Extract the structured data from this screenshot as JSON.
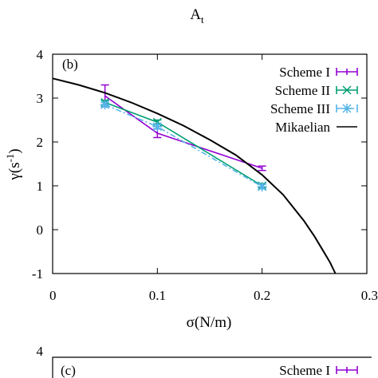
{
  "header": {
    "top_text": "A",
    "top_text_sub": "t"
  },
  "chart_data": [
    {
      "type": "line",
      "panel_label": "(b)",
      "xlabel": "σ(N/m)",
      "ylabel_main": "γ(s",
      "ylabel_sup": "-1",
      "ylabel_close": ")",
      "xlim": [
        0,
        0.3
      ],
      "ylim": [
        -1,
        4
      ],
      "x_ticks": [
        0,
        0.1,
        0.2,
        0.3
      ],
      "x_tick_labels": [
        "0",
        "0.1",
        "0.2",
        "0.3"
      ],
      "y_ticks": [
        -1,
        0,
        1,
        2,
        3,
        4
      ],
      "y_tick_labels": [
        "-1",
        "0",
        "1",
        "2",
        "3",
        "4"
      ],
      "grid": false,
      "legend_position": "top-right",
      "series": [
        {
          "name": "Scheme I",
          "color": "#9400d3",
          "style": "solid-errorbar",
          "x": [
            0.05,
            0.1,
            0.2
          ],
          "y": [
            3.05,
            2.2,
            1.4
          ],
          "err": [
            0.25,
            0.1,
            0.05
          ]
        },
        {
          "name": "Scheme II",
          "color": "#009e73",
          "style": "solid-x-marker",
          "x": [
            0.05,
            0.1,
            0.2
          ],
          "y": [
            2.9,
            2.45,
            1.0
          ],
          "err": [
            0.05,
            0.05,
            0.05
          ]
        },
        {
          "name": "Scheme III",
          "color": "#56b4e9",
          "style": "dashdot-star-marker",
          "x": [
            0.05,
            0.1,
            0.2
          ],
          "y": [
            2.85,
            2.35,
            0.98
          ],
          "err": [
            0.05,
            0.05,
            0.05
          ]
        },
        {
          "name": "Mikaelian",
          "color": "#000000",
          "style": "curve",
          "x": [
            0,
            0.025,
            0.05,
            0.075,
            0.1,
            0.125,
            0.15,
            0.175,
            0.2,
            0.22,
            0.24,
            0.25,
            0.26,
            0.265,
            0.27
          ],
          "y": [
            3.45,
            3.3,
            3.12,
            2.9,
            2.65,
            2.37,
            2.05,
            1.7,
            1.25,
            0.8,
            0.2,
            -0.15,
            -0.55,
            -0.75,
            -1.0
          ]
        }
      ]
    },
    {
      "type": "line",
      "panel_label": "(c)",
      "y_tick_labels": [
        "4"
      ],
      "legend_entries": [
        "Scheme I"
      ],
      "color": "#9400d3"
    }
  ]
}
